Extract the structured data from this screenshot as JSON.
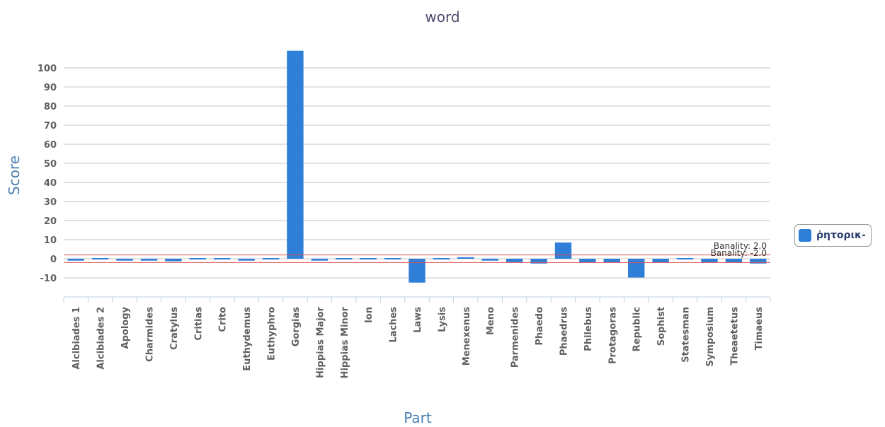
{
  "chart_data": {
    "type": "bar",
    "title": "word",
    "xlabel": "Part",
    "ylabel": "Score",
    "ylim": [
      -20,
      110
    ],
    "yticks": [
      -10,
      0,
      10,
      20,
      30,
      40,
      50,
      60,
      70,
      80,
      90,
      100
    ],
    "grid": true,
    "legend_position": "right",
    "categories": [
      "Alcibiades 1",
      "Alcibiades 2",
      "Apology",
      "Charmides",
      "Cratylus",
      "Critias",
      "Crito",
      "Euthydemus",
      "Euthyphro",
      "Gorgias",
      "Hippias Major",
      "Hippias Minor",
      "Ion",
      "Laches",
      "Laws",
      "Lysis",
      "Menexenus",
      "Meno",
      "Parmenides",
      "Phaedo",
      "Phaedrus",
      "Philebus",
      "Protagoras",
      "Republic",
      "Sophist",
      "Statesman",
      "Symposium",
      "Theaetetus",
      "Timaeus"
    ],
    "series": [
      {
        "name": "ῥητορικ-",
        "color": "#2f7ed8",
        "values": [
          -1,
          0,
          -1,
          -1,
          -1.3,
          -0.3,
          -0.3,
          -1,
          -0.4,
          109,
          -1,
          -0.3,
          -0.3,
          -0.7,
          -12.5,
          -0.7,
          0.8,
          -1,
          -1.8,
          -2.5,
          8.5,
          -2,
          -2,
          -9.8,
          -2,
          -0.4,
          -2,
          -2,
          -2.5
        ]
      }
    ],
    "reference_lines": [
      {
        "label": "Banality: 2.0",
        "value": 2.0,
        "color": "#e05050"
      },
      {
        "label": "Banality: -2.0",
        "value": -2.0,
        "color": "#e05050"
      }
    ]
  }
}
